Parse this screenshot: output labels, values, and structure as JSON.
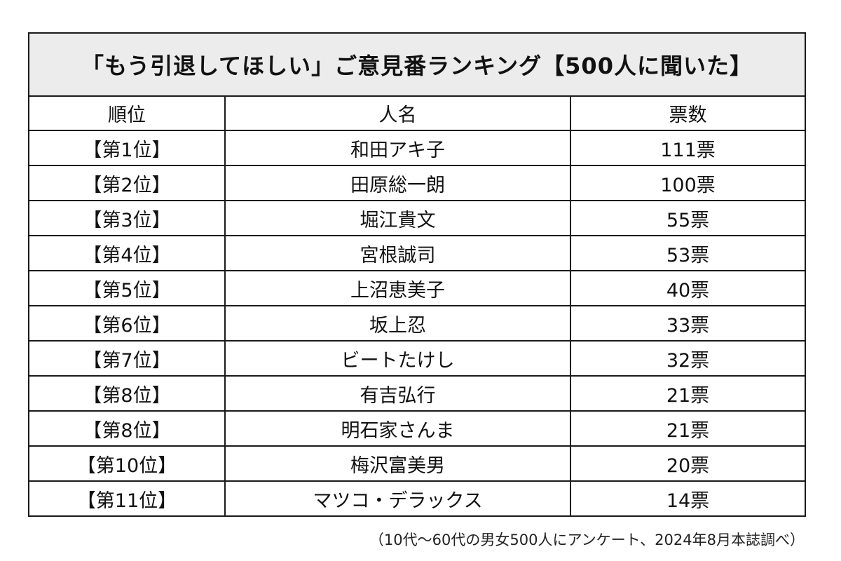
{
  "title": "「もう引退してほしい」ご意見番ランキング【500人に聞いた】",
  "columns": [
    "順位",
    "人名",
    "票数"
  ],
  "rows": [
    {
      "rank": "【第1位】",
      "name": "和田アキ子",
      "votes": "111票"
    },
    {
      "rank": "【第2位】",
      "name": "田原総一朗",
      "votes": "100票"
    },
    {
      "rank": "【第3位】",
      "name": "堀江貴文",
      "votes": "55票"
    },
    {
      "rank": "【第4位】",
      "name": "宮根誠司",
      "votes": "53票"
    },
    {
      "rank": "【第5位】",
      "name": "上沼恵美子",
      "votes": "40票"
    },
    {
      "rank": "【第6位】",
      "name": "坂上忍",
      "votes": "33票"
    },
    {
      "rank": "【第7位】",
      "name": "ビートたけし",
      "votes": "32票"
    },
    {
      "rank": "【第8位】",
      "name": "有吉弘行",
      "votes": "21票"
    },
    {
      "rank": "【第8位】",
      "name": "明石家さんま",
      "votes": "21票"
    },
    {
      "rank": "【第10位】",
      "name": "梅沢富美男",
      "votes": "20票"
    },
    {
      "rank": "【第11位】",
      "name": "マツコ・デラックス",
      "votes": "14票"
    }
  ],
  "footnote": "（10代〜60代の男女500人にアンケート、2024年8月本誌調べ）",
  "colors": {
    "title_bg": "#ececec",
    "border": "#1a1a1a",
    "text": "#111111"
  }
}
